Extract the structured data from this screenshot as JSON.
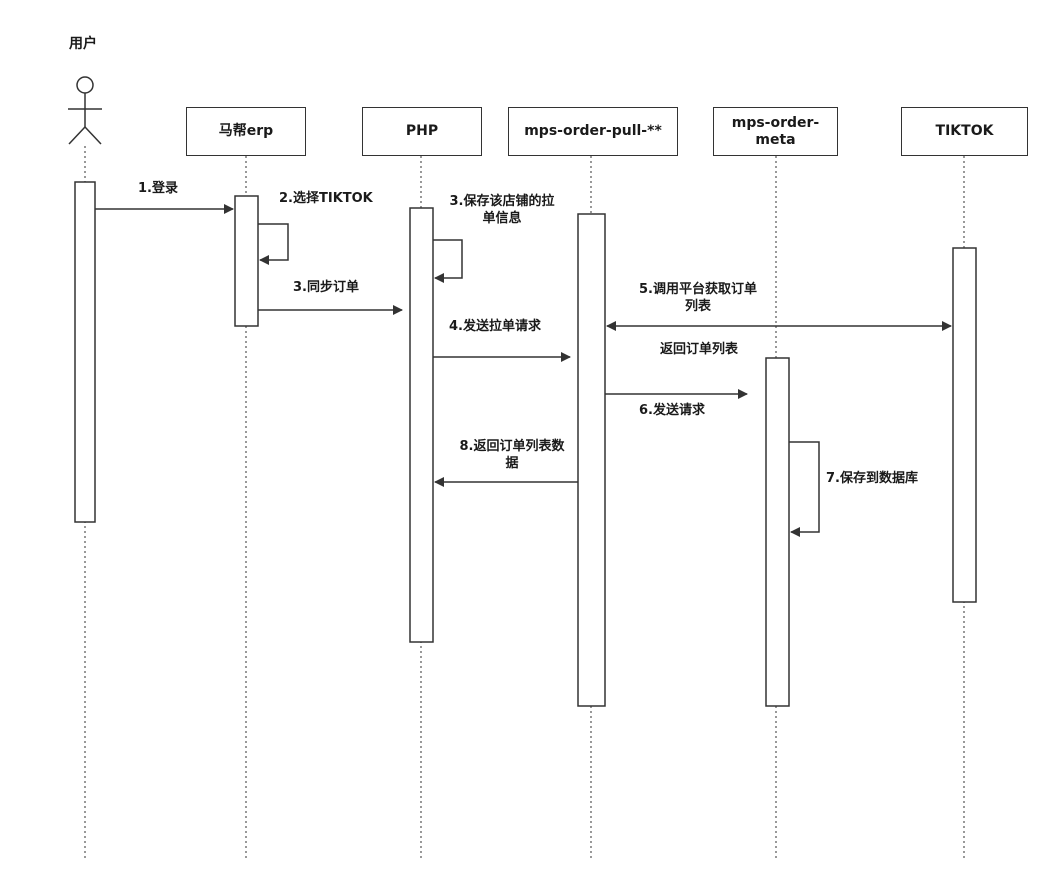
{
  "diagram": {
    "actor": {
      "label": "用户"
    },
    "participants": [
      {
        "id": "erp",
        "label": "马帮erp"
      },
      {
        "id": "php",
        "label": "PHP"
      },
      {
        "id": "pull",
        "label": "mps-order-pull-**"
      },
      {
        "id": "meta",
        "label": "mps-order-\nmeta"
      },
      {
        "id": "tiktok",
        "label": "TIKTOK"
      }
    ],
    "messages": [
      {
        "id": "m1",
        "label": "1.登录"
      },
      {
        "id": "m2",
        "label": "2.选择TIKTOK"
      },
      {
        "id": "m3",
        "label": "3.同步订单"
      },
      {
        "id": "m3b",
        "label": "3.保存该店铺的拉\n单信息"
      },
      {
        "id": "m4",
        "label": "4.发送拉单请求"
      },
      {
        "id": "m5",
        "label": "5.调用平台获取订单\n列表"
      },
      {
        "id": "m5r",
        "label": "返回订单列表"
      },
      {
        "id": "m6",
        "label": "6.发送请求"
      },
      {
        "id": "m7",
        "label": "7.保存到数据库"
      },
      {
        "id": "m8",
        "label": "8.返回订单列表数\n据"
      }
    ]
  }
}
